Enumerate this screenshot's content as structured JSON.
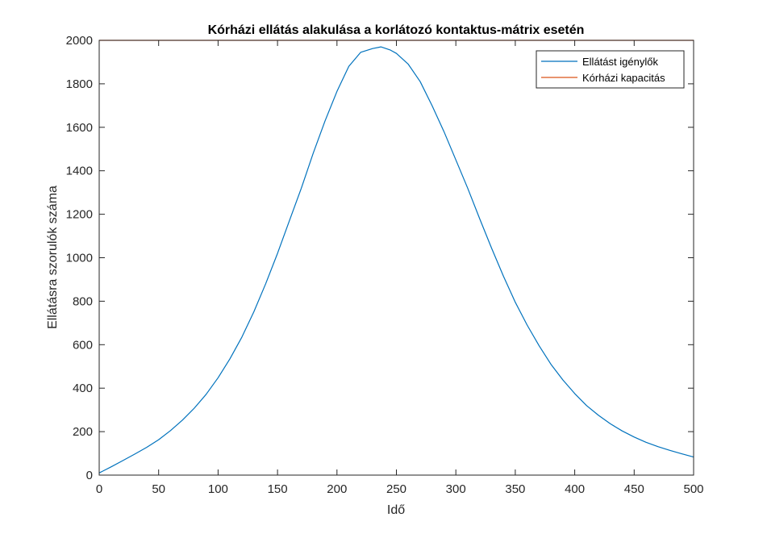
{
  "chart_data": {
    "type": "line",
    "title": "Kórházi ellátás alakulása a korlátozó kontaktus-mátrix esetén",
    "xlabel": "Idő",
    "ylabel": "Ellátásra szorulók száma",
    "xlim": [
      0,
      500
    ],
    "ylim": [
      0,
      2000
    ],
    "xticks": [
      "0",
      "50",
      "100",
      "150",
      "200",
      "250",
      "300",
      "350",
      "400",
      "450",
      "500"
    ],
    "yticks": [
      "0",
      "200",
      "400",
      "600",
      "800",
      "1000",
      "1200",
      "1400",
      "1600",
      "1800",
      "2000"
    ],
    "grid": false,
    "legend_position": "top-right",
    "series": [
      {
        "name": "Ellátást igénylők",
        "color": "#0072BD",
        "x": [
          0,
          10,
          20,
          30,
          40,
          50,
          60,
          70,
          80,
          90,
          100,
          110,
          120,
          130,
          140,
          150,
          160,
          170,
          180,
          190,
          200,
          210,
          220,
          230,
          237,
          245,
          250,
          260,
          270,
          280,
          290,
          300,
          310,
          320,
          330,
          340,
          350,
          360,
          370,
          380,
          390,
          400,
          410,
          420,
          430,
          440,
          450,
          460,
          470,
          480,
          490,
          500
        ],
        "y": [
          10,
          38,
          67,
          97,
          128,
          163,
          205,
          253,
          308,
          372,
          448,
          535,
          635,
          750,
          880,
          1020,
          1170,
          1320,
          1480,
          1630,
          1765,
          1880,
          1945,
          1962,
          1970,
          1955,
          1940,
          1890,
          1810,
          1700,
          1580,
          1450,
          1320,
          1180,
          1045,
          915,
          795,
          690,
          595,
          510,
          438,
          375,
          320,
          275,
          236,
          203,
          175,
          151,
          131,
          114,
          98,
          83
        ]
      },
      {
        "name": "Kórházi kapacitás",
        "color": "#D95319",
        "x": [
          0,
          500
        ],
        "y": [
          2000,
          2000
        ]
      }
    ]
  }
}
